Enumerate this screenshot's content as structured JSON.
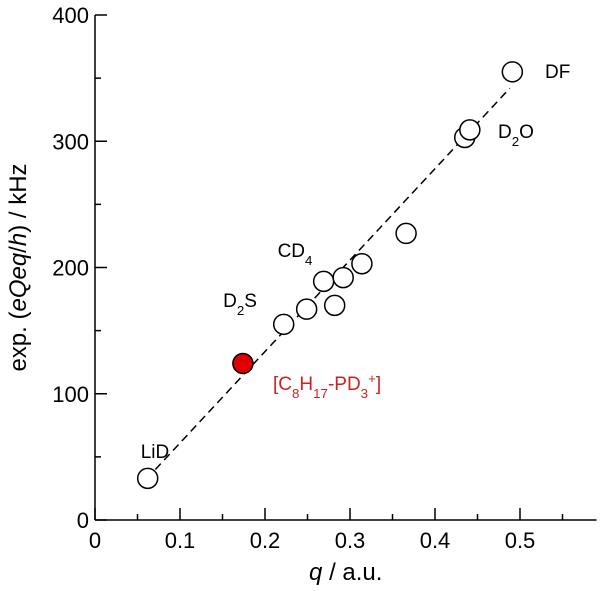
{
  "chart_data": {
    "type": "scatter",
    "xlabel": [
      {
        "text": "q",
        "italic": true
      },
      {
        "text": " / a.u."
      }
    ],
    "ylabel": [
      {
        "text": "exp. ("
      },
      {
        "text": "eQeq",
        "italic": true
      },
      {
        "text": "/"
      },
      {
        "text": "h",
        "italic": true
      },
      {
        "text": ") / kHz"
      }
    ],
    "xlim": [
      0,
      0.59
    ],
    "ylim": [
      0,
      400
    ],
    "xticks": [
      0,
      0.1,
      0.2,
      0.3,
      0.4,
      0.5
    ],
    "yticks": [
      0,
      100,
      200,
      300,
      400
    ],
    "xminorticks": [
      0.05,
      0.15,
      0.25,
      0.35,
      0.45,
      0.55
    ],
    "yminorticks": [
      50,
      150,
      250,
      350
    ],
    "series": [
      {
        "color": "#ffffff",
        "x": [
          0.062,
          0.222,
          0.249,
          0.269,
          0.282,
          0.292,
          0.314,
          0.366,
          0.435,
          0.441,
          0.491
        ],
        "values": [
          33,
          155,
          167,
          189,
          170,
          192,
          203,
          227,
          303,
          309,
          355
        ]
      },
      {
        "color": "#e00000",
        "x": [
          0.174
        ],
        "values": [
          124
        ]
      }
    ],
    "fit_line": {
      "x": [
        0.071,
        0.488
      ],
      "values": [
        40,
        342
      ]
    },
    "annotations": [
      {
        "color": "#000000",
        "parts": [
          {
            "text": "LiD"
          }
        ]
      },
      {
        "color": "#000000",
        "parts": [
          {
            "text": "D"
          },
          {
            "text": "2",
            "sub": true
          },
          {
            "text": "S"
          }
        ]
      },
      {
        "color": "#000000",
        "parts": [
          {
            "text": "CD"
          },
          {
            "text": "4",
            "sub": true
          }
        ]
      },
      {
        "color": "#000000",
        "parts": [
          {
            "text": "D"
          },
          {
            "text": "2",
            "sub": true
          },
          {
            "text": "O"
          }
        ]
      },
      {
        "color": "#000000",
        "parts": [
          {
            "text": "DF"
          }
        ]
      },
      {
        "color": "#cc2222",
        "parts": [
          {
            "text": "[C"
          },
          {
            "text": "8",
            "sub": true
          },
          {
            "text": "H"
          },
          {
            "text": "17",
            "sub": true
          },
          {
            "text": "-PD"
          },
          {
            "text": "3",
            "sub": true
          },
          {
            "text": "+",
            "sup": true
          },
          {
            "text": "]"
          }
        ]
      }
    ]
  }
}
